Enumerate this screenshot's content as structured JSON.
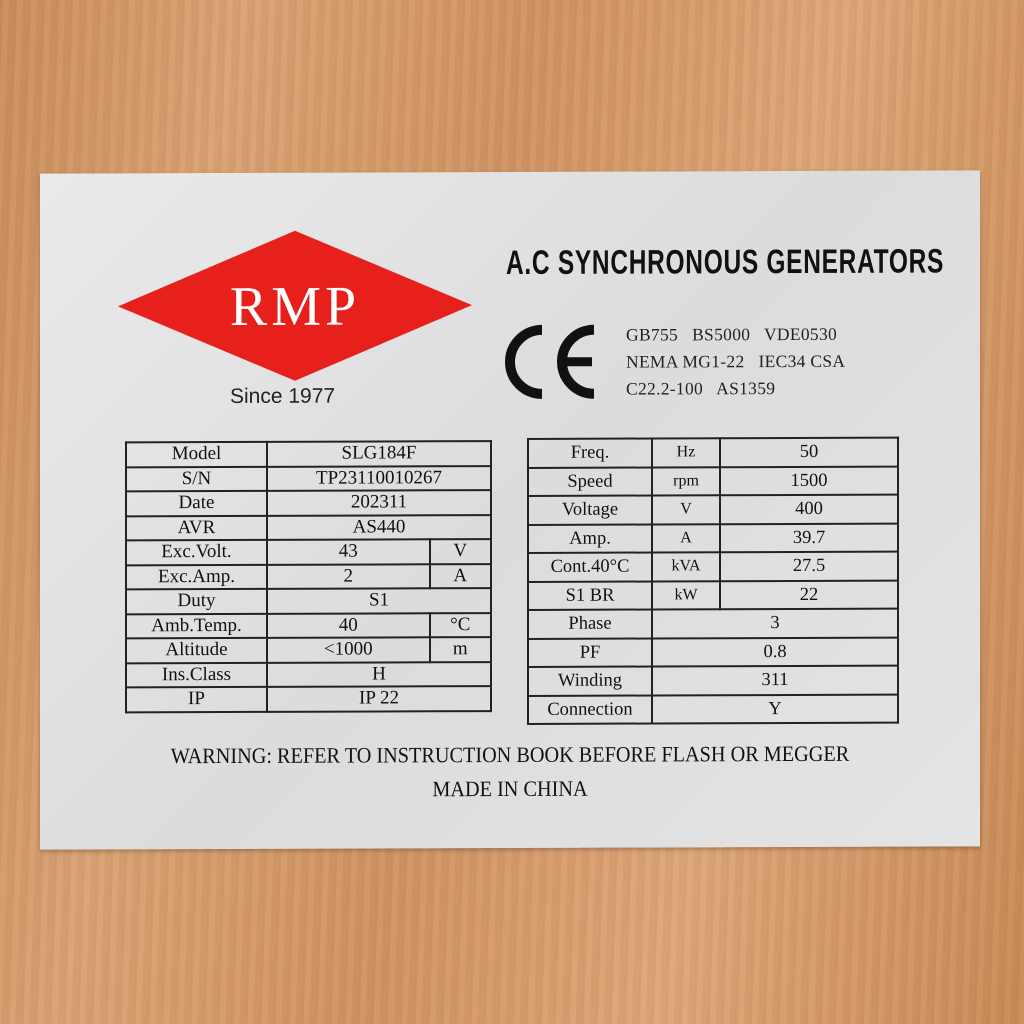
{
  "brand": {
    "logo_text": "RMP",
    "since": "Since 1977",
    "logo_color": "#e8201c"
  },
  "title": "A.C SYNCHRONOUS GENERATORS",
  "ce_mark": "CE",
  "standards": [
    "GB755   BS5000   VDE0530",
    "NEMA MG1-22   IEC34 CSA",
    "C22.2-100   AS1359"
  ],
  "left_table": [
    {
      "label": "Model",
      "value": "SLG184F",
      "unit": ""
    },
    {
      "label": "S/N",
      "value": "TP23110010267",
      "unit": ""
    },
    {
      "label": "Date",
      "value": "202311",
      "unit": ""
    },
    {
      "label": "AVR",
      "value": "AS440",
      "unit": ""
    },
    {
      "label": "Exc.Volt.",
      "value": "43",
      "unit": "V"
    },
    {
      "label": "Exc.Amp.",
      "value": "2",
      "unit": "A"
    },
    {
      "label": "Duty",
      "value": "S1",
      "unit": ""
    },
    {
      "label": "Amb.Temp.",
      "value": "40",
      "unit": "°C"
    },
    {
      "label": "Altitude",
      "value": "<1000",
      "unit": "m"
    },
    {
      "label": "Ins.Class",
      "value": "H",
      "unit": ""
    },
    {
      "label": "IP",
      "value": "IP 22",
      "unit": ""
    }
  ],
  "right_table": [
    {
      "label": "Freq.",
      "unit": "Hz",
      "value": "50"
    },
    {
      "label": "Speed",
      "unit": "rpm",
      "value": "1500"
    },
    {
      "label": "Voltage",
      "unit": "V",
      "value": "400"
    },
    {
      "label": "Amp.",
      "unit": "A",
      "value": "39.7"
    },
    {
      "label": "Cont.40°C",
      "unit": "kVA",
      "value": "27.5"
    },
    {
      "label": "S1 BR",
      "unit": "kW",
      "value": "22"
    },
    {
      "label": "Phase",
      "unit": "",
      "value": "3"
    },
    {
      "label": "PF",
      "unit": "",
      "value": "0.8"
    },
    {
      "label": "Winding",
      "unit": "",
      "value": "311"
    },
    {
      "label": "Connection",
      "unit": "",
      "value": "Y"
    }
  ],
  "warning": "WARNING: REFER TO INSTRUCTION BOOK BEFORE FLASH OR MEGGER",
  "origin": "MADE IN CHINA"
}
